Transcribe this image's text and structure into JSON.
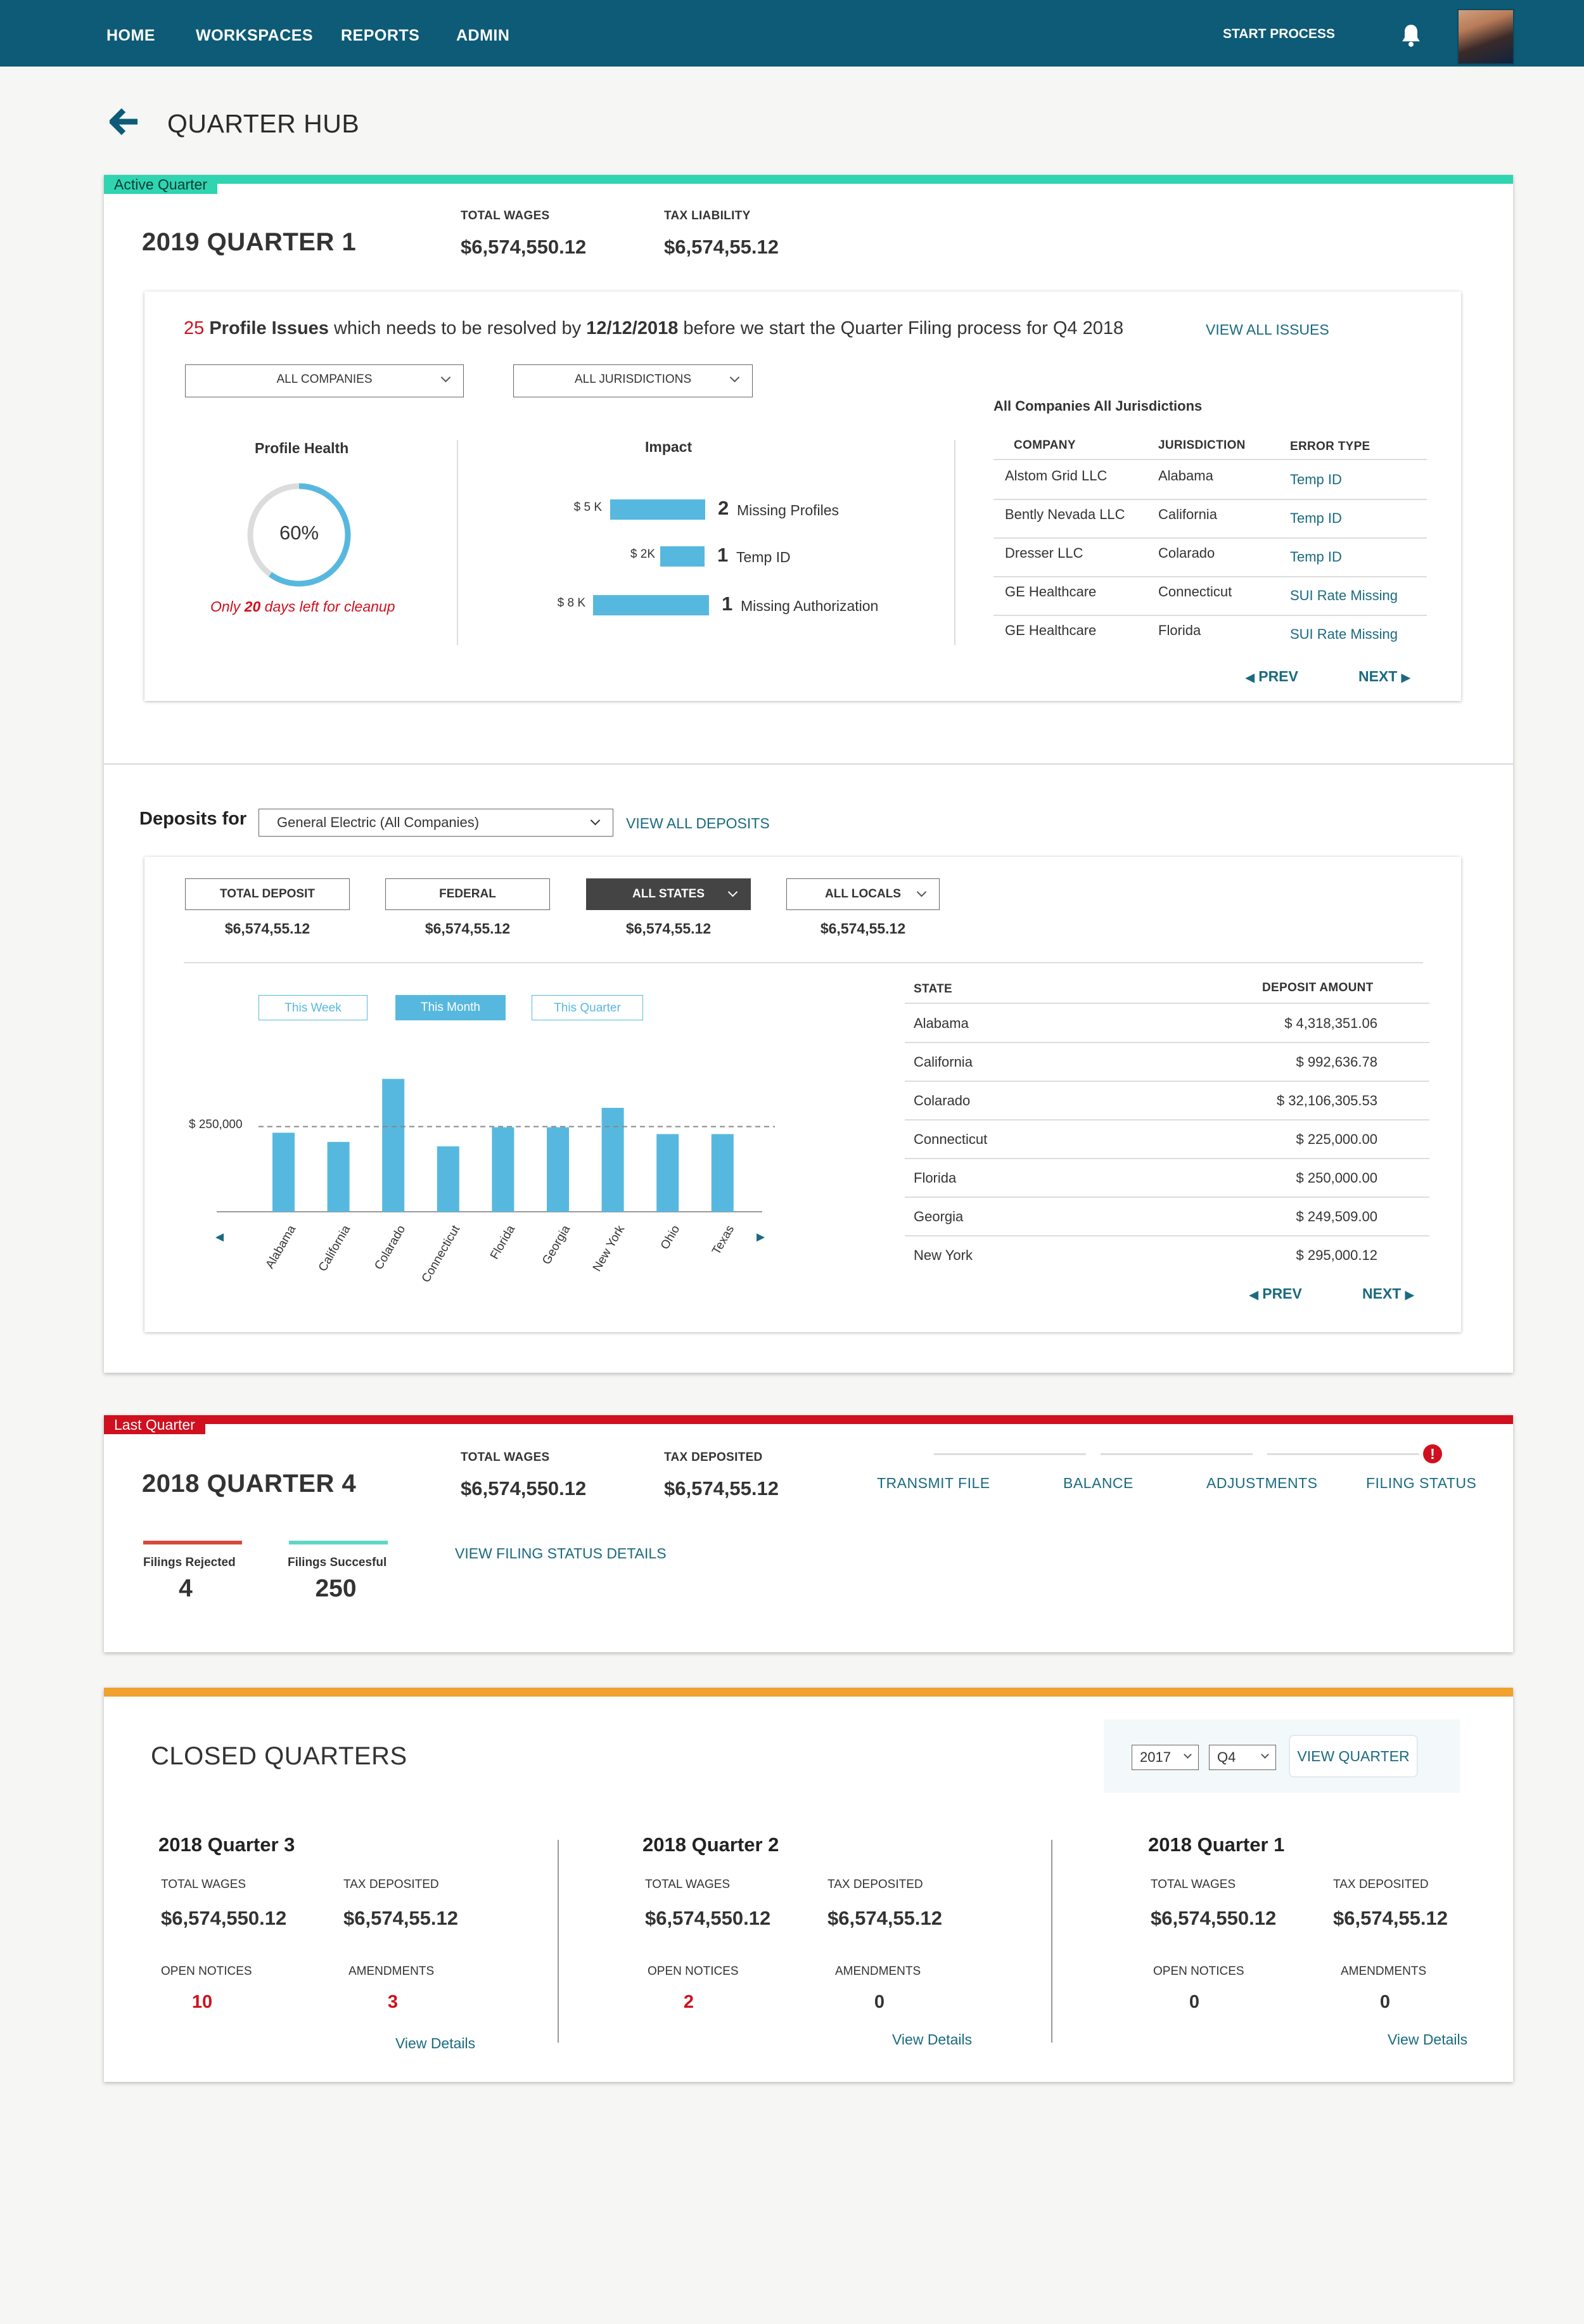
{
  "nav": {
    "items": [
      "HOME",
      "WORKSPACES",
      "REPORTS",
      "ADMIN"
    ],
    "start_process": "START PROCESS"
  },
  "page": {
    "title": "QUARTER HUB"
  },
  "active": {
    "tag": "Active Quarter",
    "title": "2019 QUARTER 1",
    "total_wages_label": "TOTAL WAGES",
    "total_wages": "$6,574,550.12",
    "tax_liability_label": "TAX LIABILITY",
    "tax_liability": "$6,574,55.12",
    "issues": {
      "count": "25",
      "bold1": "Profile Issues",
      "text1": "which needs to be resolved by",
      "date": "12/12/2018",
      "text2": "before we start the Quarter Filing process for Q4 2018",
      "view_all": "VIEW ALL ISSUES",
      "filter_companies": "ALL COMPANIES",
      "filter_jurisdictions": "ALL JURISDICTIONS",
      "health_label": "Profile Health",
      "health_pct": "60%",
      "health_value": 0.6,
      "cleanup_pre": "Only",
      "cleanup_days": "20",
      "cleanup_post": "days left for cleanup",
      "impact_label": "Impact",
      "impact": [
        {
          "amount": "$ 5 K",
          "count": "2",
          "label": "Missing Profiles",
          "value": 5
        },
        {
          "amount": "$ 2K",
          "count": "1",
          "label": "Temp ID",
          "value": 2
        },
        {
          "amount": "$ 8 K",
          "count": "1",
          "label": "Missing Authorization",
          "value": 8
        }
      ],
      "table_title": "All Companies All Jurisdictions",
      "columns": [
        "COMPANY",
        "JURISDICTION",
        "ERROR TYPE"
      ],
      "rows": [
        {
          "company": "Alstom Grid LLC",
          "jurisdiction": "Alabama",
          "error": "Temp ID"
        },
        {
          "company": "Bently Nevada LLC",
          "jurisdiction": "California",
          "error": "Temp ID"
        },
        {
          "company": "Dresser LLC",
          "jurisdiction": "Colarado",
          "error": "Temp ID"
        },
        {
          "company": "GE Healthcare",
          "jurisdiction": "Connecticut",
          "error": "SUI Rate Missing"
        },
        {
          "company": "GE Healthcare",
          "jurisdiction": "Florida",
          "error": "SUI Rate Missing"
        }
      ],
      "prev": "PREV",
      "next": "NEXT"
    },
    "deposits": {
      "label": "Deposits for",
      "company": "General Electric (All Companies)",
      "view_all": "VIEW ALL DEPOSITS",
      "tabs": [
        {
          "label": "TOTAL DEPOSIT",
          "amount": "$6,574,55.12"
        },
        {
          "label": "FEDERAL",
          "amount": "$6,574,55.12"
        },
        {
          "label": "ALL STATES",
          "amount": "$6,574,55.12"
        },
        {
          "label": "ALL LOCALS",
          "amount": "$6,574,55.12"
        }
      ],
      "periods": [
        "This Week",
        "This Month",
        "This Quarter"
      ],
      "columns": [
        "STATE",
        "DEPOSIT AMOUNT"
      ],
      "rows": [
        {
          "state": "Alabama",
          "amount": "$ 4,318,351.06"
        },
        {
          "state": "California",
          "amount": "$ 992,636.78"
        },
        {
          "state": "Colarado",
          "amount": "$ 32,106,305.53"
        },
        {
          "state": "Connecticut",
          "amount": "$ 225,000.00"
        },
        {
          "state": "Florida",
          "amount": "$ 250,000.00"
        },
        {
          "state": "Georgia",
          "amount": "$  249,509.00"
        },
        {
          "state": "New York",
          "amount": "$ 295,000.12"
        }
      ],
      "prev": "PREV",
      "next": "NEXT"
    }
  },
  "chart_data": {
    "type": "bar",
    "categories": [
      "Alabama",
      "California",
      "Colarado",
      "Connecticut",
      "Florida",
      "Georgia",
      "New York",
      "Ohio",
      "Texas"
    ],
    "values": [
      232000,
      205000,
      390000,
      192000,
      248000,
      248000,
      305000,
      228000,
      228000
    ],
    "reference_line": {
      "value": 250000,
      "label": "$ 250,000"
    },
    "ylim": [
      0,
      400000
    ],
    "grid": false
  },
  "last": {
    "tag": "Last Quarter",
    "title": "2018 QUARTER 4",
    "total_wages_label": "TOTAL WAGES",
    "total_wages": "$6,574,550.12",
    "tax_deposited_label": "TAX DEPOSITED",
    "tax_deposited": "$6,574,55.12",
    "steps": [
      "TRANSMIT FILE",
      "BALANCE",
      "ADJUSTMENTS",
      "FILING STATUS"
    ],
    "rejected_label": "Filings Rejected",
    "rejected": "4",
    "success_label": "Filings Succesful",
    "success": "250",
    "view_details": "VIEW FILING STATUS DETAILS"
  },
  "closed": {
    "title": "CLOSED QUARTERS",
    "year": "2017",
    "quarter": "Q4",
    "view": "VIEW QUARTER",
    "quarters": [
      {
        "title": "2018 Quarter 3",
        "wages_label": "TOTAL WAGES",
        "wages": "$6,574,550.12",
        "tax_label": "TAX DEPOSITED",
        "tax": "$6,574,55.12",
        "notices_label": "OPEN NOTICES",
        "notices": "10",
        "amend_label": "AMENDMENTS",
        "amend": "3",
        "details": "View Details"
      },
      {
        "title": "2018 Quarter 2",
        "wages_label": "TOTAL WAGES",
        "wages": "$6,574,550.12",
        "tax_label": "TAX DEPOSITED",
        "tax": "$6,574,55.12",
        "notices_label": "OPEN NOTICES",
        "notices": "2",
        "amend_label": "AMENDMENTS",
        "amend": "0",
        "details": "View Details"
      },
      {
        "title": "2018 Quarter 1",
        "wages_label": "TOTAL WAGES",
        "wages": "$6,574,550.12",
        "tax_label": "TAX DEPOSITED",
        "tax": "$6,574,55.12",
        "notices_label": "OPEN NOTICES",
        "notices": "0",
        "amend_label": "AMENDMENTS",
        "amend": "0",
        "details": "View Details"
      }
    ]
  },
  "colors": {
    "nav": "#0d5b76",
    "active_accent": "#2fd4b0",
    "last_accent": "#d0101e",
    "closed_accent": "#f0a12e",
    "bar": "#57b8df",
    "link": "#1a6a80",
    "alert": "#d0101e"
  }
}
